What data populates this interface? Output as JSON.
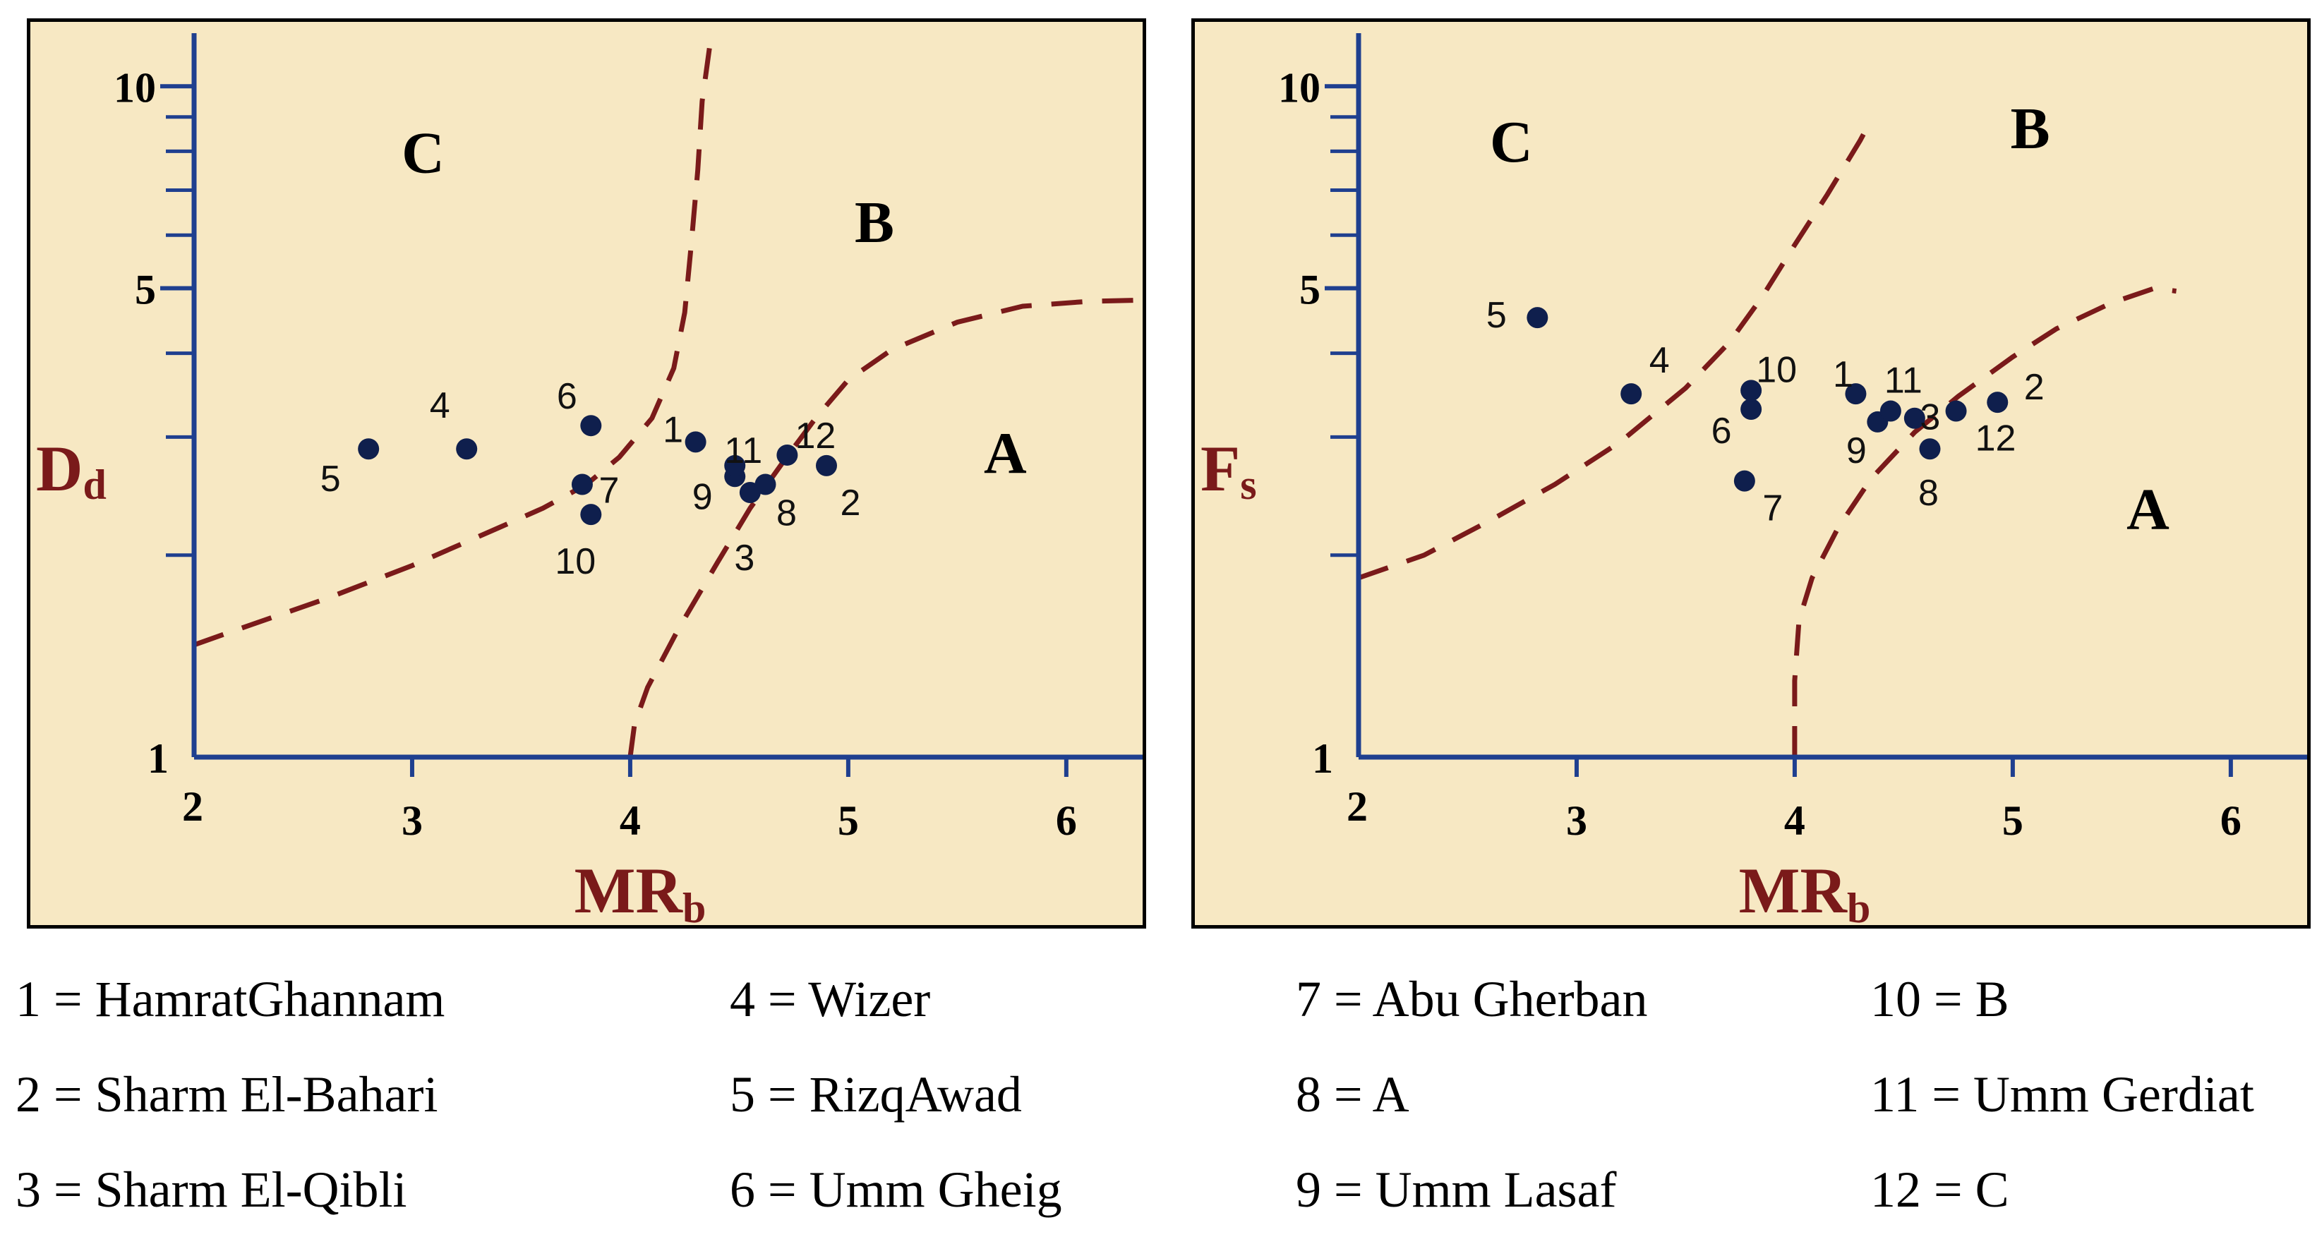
{
  "colors": {
    "background": "#f7e8c3",
    "axis": "#1f3f8f",
    "boundary": "#7a1a1a",
    "axis_label": "#7a1a1a",
    "point": "#0f1f4d"
  },
  "chart_data": [
    {
      "type": "scatter",
      "title": "",
      "xlabel": "MR",
      "xlabel_sub": "b",
      "ylabel": "D",
      "ylabel_sub": "d",
      "xlim": [
        2,
        6.35
      ],
      "ylim": [
        1,
        12
      ],
      "y_scale": "log",
      "x_ticks": [
        2,
        3,
        4,
        5,
        6
      ],
      "x_tick_labels": [
        "2",
        "3",
        "4",
        "5",
        "6"
      ],
      "y_ticks": [
        1,
        5,
        10
      ],
      "y_tick_labels": [
        "1",
        "5",
        "10"
      ],
      "y_minor_ticks": [
        2,
        3,
        4,
        6,
        7,
        8,
        9
      ],
      "regions": [
        {
          "label": "A",
          "x": 5.72,
          "y": 2.85
        },
        {
          "label": "B",
          "x": 5.12,
          "y": 6.3
        },
        {
          "label": "C",
          "x": 3.05,
          "y": 8.0
        }
      ],
      "boundaries": [
        {
          "name": "",
          "points": [
            [
              2.0,
              1.47
            ],
            [
              2.2,
              1.55
            ],
            [
              2.6,
              1.72
            ],
            [
              3.0,
              1.93
            ],
            [
              3.4,
              2.2
            ],
            [
              3.6,
              2.35
            ],
            [
              3.8,
              2.55
            ],
            [
              3.95,
              2.8
            ],
            [
              4.1,
              3.2
            ],
            [
              4.2,
              3.8
            ],
            [
              4.25,
              4.6
            ],
            [
              4.28,
              5.8
            ],
            [
              4.31,
              7.5
            ],
            [
              4.33,
              9.5
            ],
            [
              4.37,
              11.8
            ]
          ]
        },
        {
          "name": "",
          "points": [
            [
              4.0,
              1.0
            ],
            [
              4.02,
              1.12
            ],
            [
              4.08,
              1.27
            ],
            [
              4.22,
              1.55
            ],
            [
              4.4,
              1.95
            ],
            [
              4.55,
              2.35
            ],
            [
              4.7,
              2.75
            ],
            [
              4.85,
              3.2
            ],
            [
              5.0,
              3.65
            ],
            [
              5.2,
              4.05
            ],
            [
              5.5,
              4.45
            ],
            [
              5.8,
              4.7
            ],
            [
              6.1,
              4.78
            ],
            [
              6.35,
              4.8
            ]
          ]
        }
      ],
      "points": [
        {
          "label": "1",
          "x": 4.3,
          "y": 2.95
        },
        {
          "label": "2",
          "x": 4.9,
          "y": 2.72
        },
        {
          "label": "3",
          "x": 4.55,
          "y": 2.48
        },
        {
          "label": "4",
          "x": 3.25,
          "y": 2.88
        },
        {
          "label": "5",
          "x": 2.8,
          "y": 2.88
        },
        {
          "label": "6",
          "x": 3.82,
          "y": 3.12
        },
        {
          "label": "7",
          "x": 3.78,
          "y": 2.55
        },
        {
          "label": "8",
          "x": 4.62,
          "y": 2.55
        },
        {
          "label": "9",
          "x": 4.48,
          "y": 2.62
        },
        {
          "label": "10",
          "x": 3.82,
          "y": 2.3
        },
        {
          "label": "11",
          "x": 4.48,
          "y": 2.72
        },
        {
          "label": "12",
          "x": 4.72,
          "y": 2.82
        }
      ]
    },
    {
      "type": "scatter",
      "title": "",
      "xlabel": "MR",
      "xlabel_sub": "b",
      "ylabel": "F",
      "ylabel_sub": "s",
      "xlim": [
        2,
        6.35
      ],
      "ylim": [
        1,
        12
      ],
      "y_scale": "log",
      "x_ticks": [
        2,
        3,
        4,
        5,
        6
      ],
      "x_tick_labels": [
        "2",
        "3",
        "4",
        "5",
        "6"
      ],
      "y_ticks": [
        1,
        5,
        10
      ],
      "y_tick_labels": [
        "1",
        "5",
        "10"
      ],
      "y_minor_ticks": [
        2,
        3,
        4,
        6,
        7,
        8,
        9
      ],
      "regions": [
        {
          "label": "A",
          "x": 5.62,
          "y": 2.35
        },
        {
          "label": "B",
          "x": 5.08,
          "y": 8.7
        },
        {
          "label": "C",
          "x": 2.7,
          "y": 8.3
        }
      ],
      "boundaries": [
        {
          "name": "",
          "points": [
            [
              2.0,
              1.85
            ],
            [
              2.3,
              2.0
            ],
            [
              2.6,
              2.25
            ],
            [
              2.9,
              2.55
            ],
            [
              3.2,
              2.95
            ],
            [
              3.5,
              3.55
            ],
            [
              3.7,
              4.15
            ],
            [
              3.85,
              4.85
            ],
            [
              4.0,
              5.8
            ],
            [
              4.15,
              6.9
            ],
            [
              4.3,
              8.3
            ],
            [
              4.35,
              8.9
            ]
          ]
        },
        {
          "name": "",
          "points": [
            [
              4.0,
              1.0
            ],
            [
              4.0,
              1.3
            ],
            [
              4.02,
              1.6
            ],
            [
              4.08,
              1.85
            ],
            [
              4.2,
              2.2
            ],
            [
              4.35,
              2.6
            ],
            [
              4.55,
              3.05
            ],
            [
              4.75,
              3.45
            ],
            [
              5.0,
              3.95
            ],
            [
              5.2,
              4.35
            ],
            [
              5.45,
              4.75
            ],
            [
              5.65,
              5.0
            ],
            [
              5.75,
              4.95
            ]
          ]
        }
      ],
      "points": [
        {
          "label": "1",
          "x": 4.28,
          "y": 3.48
        },
        {
          "label": "2",
          "x": 4.93,
          "y": 3.38
        },
        {
          "label": "3",
          "x": 4.55,
          "y": 3.2
        },
        {
          "label": "4",
          "x": 3.25,
          "y": 3.48
        },
        {
          "label": "5",
          "x": 2.82,
          "y": 4.52
        },
        {
          "label": "6",
          "x": 3.8,
          "y": 3.3
        },
        {
          "label": "7",
          "x": 3.77,
          "y": 2.58
        },
        {
          "label": "8",
          "x": 4.62,
          "y": 2.88
        },
        {
          "label": "9",
          "x": 4.38,
          "y": 3.16
        },
        {
          "label": "10",
          "x": 3.8,
          "y": 3.52
        },
        {
          "label": "11",
          "x": 4.44,
          "y": 3.28
        },
        {
          "label": "12",
          "x": 4.74,
          "y": 3.28
        }
      ]
    }
  ],
  "legend": [
    {
      "text": "1 = HamratGhannam"
    },
    {
      "text": "2 = Sharm El-Bahari"
    },
    {
      "text": "3 = Sharm El-Qibli"
    },
    {
      "text": "4 = Wizer"
    },
    {
      "text": "5 = RizqAwad"
    },
    {
      "text": "6 = Umm Gheig"
    },
    {
      "text": "7 = Abu Gherban"
    },
    {
      "text": "8 = A"
    },
    {
      "text": "9 = Umm Lasaf"
    },
    {
      "text": "10 = B"
    },
    {
      "text": "11 = Umm Gerdiat"
    },
    {
      "text": "12 = C"
    }
  ]
}
